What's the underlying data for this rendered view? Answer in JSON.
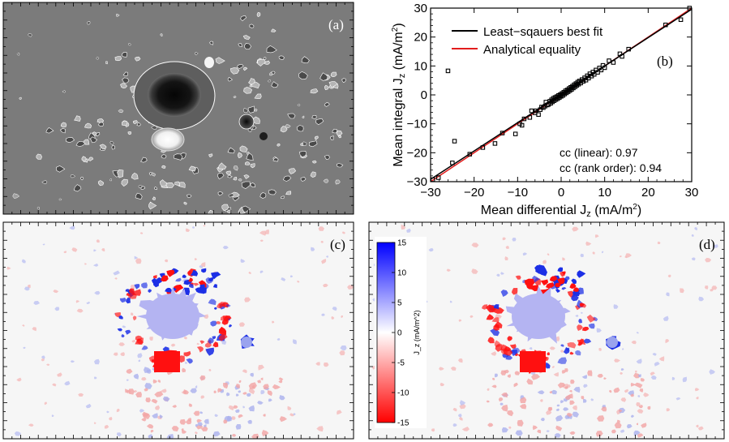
{
  "colors": {
    "magnetogram_bg": "#7b7b7b",
    "map_bg": "#f6f6f6",
    "positive": "#1c2fe6",
    "negative": "#ff1010",
    "umbra_fill": "#b4b4f2",
    "fit_line": "#000000",
    "equality_line": "#e21c1c"
  },
  "panel_a": {
    "label": "(a)"
  },
  "panel_c": {
    "label": "(c)"
  },
  "panel_d": {
    "label": "(d)"
  },
  "colorbar": {
    "label": "J_z (mA/m^2)",
    "ticks": [
      "15",
      "10",
      "5",
      "0",
      "-5",
      "-10",
      "-15"
    ],
    "tick_values": [
      15,
      10,
      5,
      0,
      -5,
      -10,
      -15
    ],
    "range": [
      -15,
      15
    ]
  },
  "chart_data": {
    "type": "scatter",
    "label": "(b)",
    "xlabel": "Mean differential J",
    "xlabel_sub": "z",
    "xlabel_units": " (mA/m",
    "ylabel": "Mean integral J",
    "ylabel_sub": "z",
    "ylabel_units": " (mA/m",
    "units_sup": "2",
    "xlim": [
      -30,
      30
    ],
    "ylim": [
      -30,
      30
    ],
    "xticks": [
      -30,
      -20,
      -10,
      0,
      10,
      20,
      30
    ],
    "yticks": [
      -30,
      -20,
      -10,
      0,
      10,
      20,
      30
    ],
    "xtick_labels": [
      "−30",
      "−20",
      "−10",
      "0",
      "10",
      "20",
      "30"
    ],
    "ytick_labels": [
      "−30",
      "−20",
      "−10",
      "0",
      "10",
      "20",
      "30"
    ],
    "legend": [
      {
        "name": "Least−sqauers best fit",
        "color": "#000000"
      },
      {
        "name": "Analytical equality",
        "color": "#e21c1c"
      }
    ],
    "fit": {
      "slope": 0.98,
      "intercept": 0.2
    },
    "equality": {
      "slope": 1.0,
      "intercept": 0.0
    },
    "annotations": [
      "cc (linear): 0.97",
      "cc (rank order): 0.94"
    ],
    "points": [
      [
        -29.5,
        -29.3
      ],
      [
        -28.2,
        -28.6
      ],
      [
        -26,
        8.3
      ],
      [
        -25,
        -23.5
      ],
      [
        -24.5,
        -16
      ],
      [
        -21,
        -20.5
      ],
      [
        -18,
        -18.2
      ],
      [
        -15.2,
        -16.8
      ],
      [
        -13.5,
        -13.2
      ],
      [
        -10.5,
        -13.5
      ],
      [
        -9.5,
        -10
      ],
      [
        -9,
        -10.5
      ],
      [
        -8.5,
        -8.3
      ],
      [
        -7.2,
        -7.8
      ],
      [
        -6.8,
        -5.5
      ],
      [
        -6,
        -6.2
      ],
      [
        -5.8,
        -5.5
      ],
      [
        -5.2,
        -6.8
      ],
      [
        -4.8,
        -5.1
      ],
      [
        -4.5,
        -4.2
      ],
      [
        -4.1,
        -4.4
      ],
      [
        -3.7,
        -3.9
      ],
      [
        -3.5,
        -2.5
      ],
      [
        -3.2,
        -3.5
      ],
      [
        -2.9,
        -3.3
      ],
      [
        -2.6,
        -2.2
      ],
      [
        -2.4,
        -2.9
      ],
      [
        -2.2,
        -1.7
      ],
      [
        -2.0,
        -2.4
      ],
      [
        -1.8,
        -1.2
      ],
      [
        -1.6,
        -2.0
      ],
      [
        -1.4,
        -0.9
      ],
      [
        -1.2,
        -1.6
      ],
      [
        -1.0,
        -0.6
      ],
      [
        -0.8,
        -1.3
      ],
      [
        -0.6,
        -0.2
      ],
      [
        -0.4,
        -0.9
      ],
      [
        -0.2,
        0.1
      ],
      [
        0.0,
        -0.5
      ],
      [
        0.2,
        0.5
      ],
      [
        0.4,
        -0.2
      ],
      [
        0.6,
        0.9
      ],
      [
        0.8,
        0.3
      ],
      [
        1.0,
        1.4
      ],
      [
        1.2,
        0.7
      ],
      [
        1.4,
        1.7
      ],
      [
        1.6,
        1.1
      ],
      [
        1.8,
        2.2
      ],
      [
        2.0,
        1.5
      ],
      [
        2.2,
        2.6
      ],
      [
        2.4,
        1.9
      ],
      [
        2.6,
        3.0
      ],
      [
        2.8,
        2.4
      ],
      [
        3.0,
        3.5
      ],
      [
        3.2,
        2.8
      ],
      [
        3.4,
        3.9
      ],
      [
        3.6,
        3.3
      ],
      [
        3.8,
        4.4
      ],
      [
        4.0,
        3.7
      ],
      [
        4.2,
        4.8
      ],
      [
        4.5,
        4.1
      ],
      [
        4.8,
        5.3
      ],
      [
        5.1,
        4.7
      ],
      [
        5.4,
        5.9
      ],
      [
        5.7,
        5.1
      ],
      [
        6.0,
        6.6
      ],
      [
        6.3,
        5.8
      ],
      [
        6.6,
        7.3
      ],
      [
        7.0,
        6.5
      ],
      [
        7.3,
        7.9
      ],
      [
        7.6,
        7.1
      ],
      [
        8.0,
        8.6
      ],
      [
        8.4,
        7.8
      ],
      [
        8.8,
        9.3
      ],
      [
        9.2,
        8.6
      ],
      [
        9.6,
        10.2
      ],
      [
        10,
        9.4
      ],
      [
        11,
        11.8
      ],
      [
        12,
        11.2
      ],
      [
        13.5,
        14.2
      ],
      [
        14,
        13.3
      ],
      [
        15.5,
        15.8
      ],
      [
        24,
        24.2
      ],
      [
        27.5,
        26
      ],
      [
        29.5,
        30
      ]
    ]
  }
}
